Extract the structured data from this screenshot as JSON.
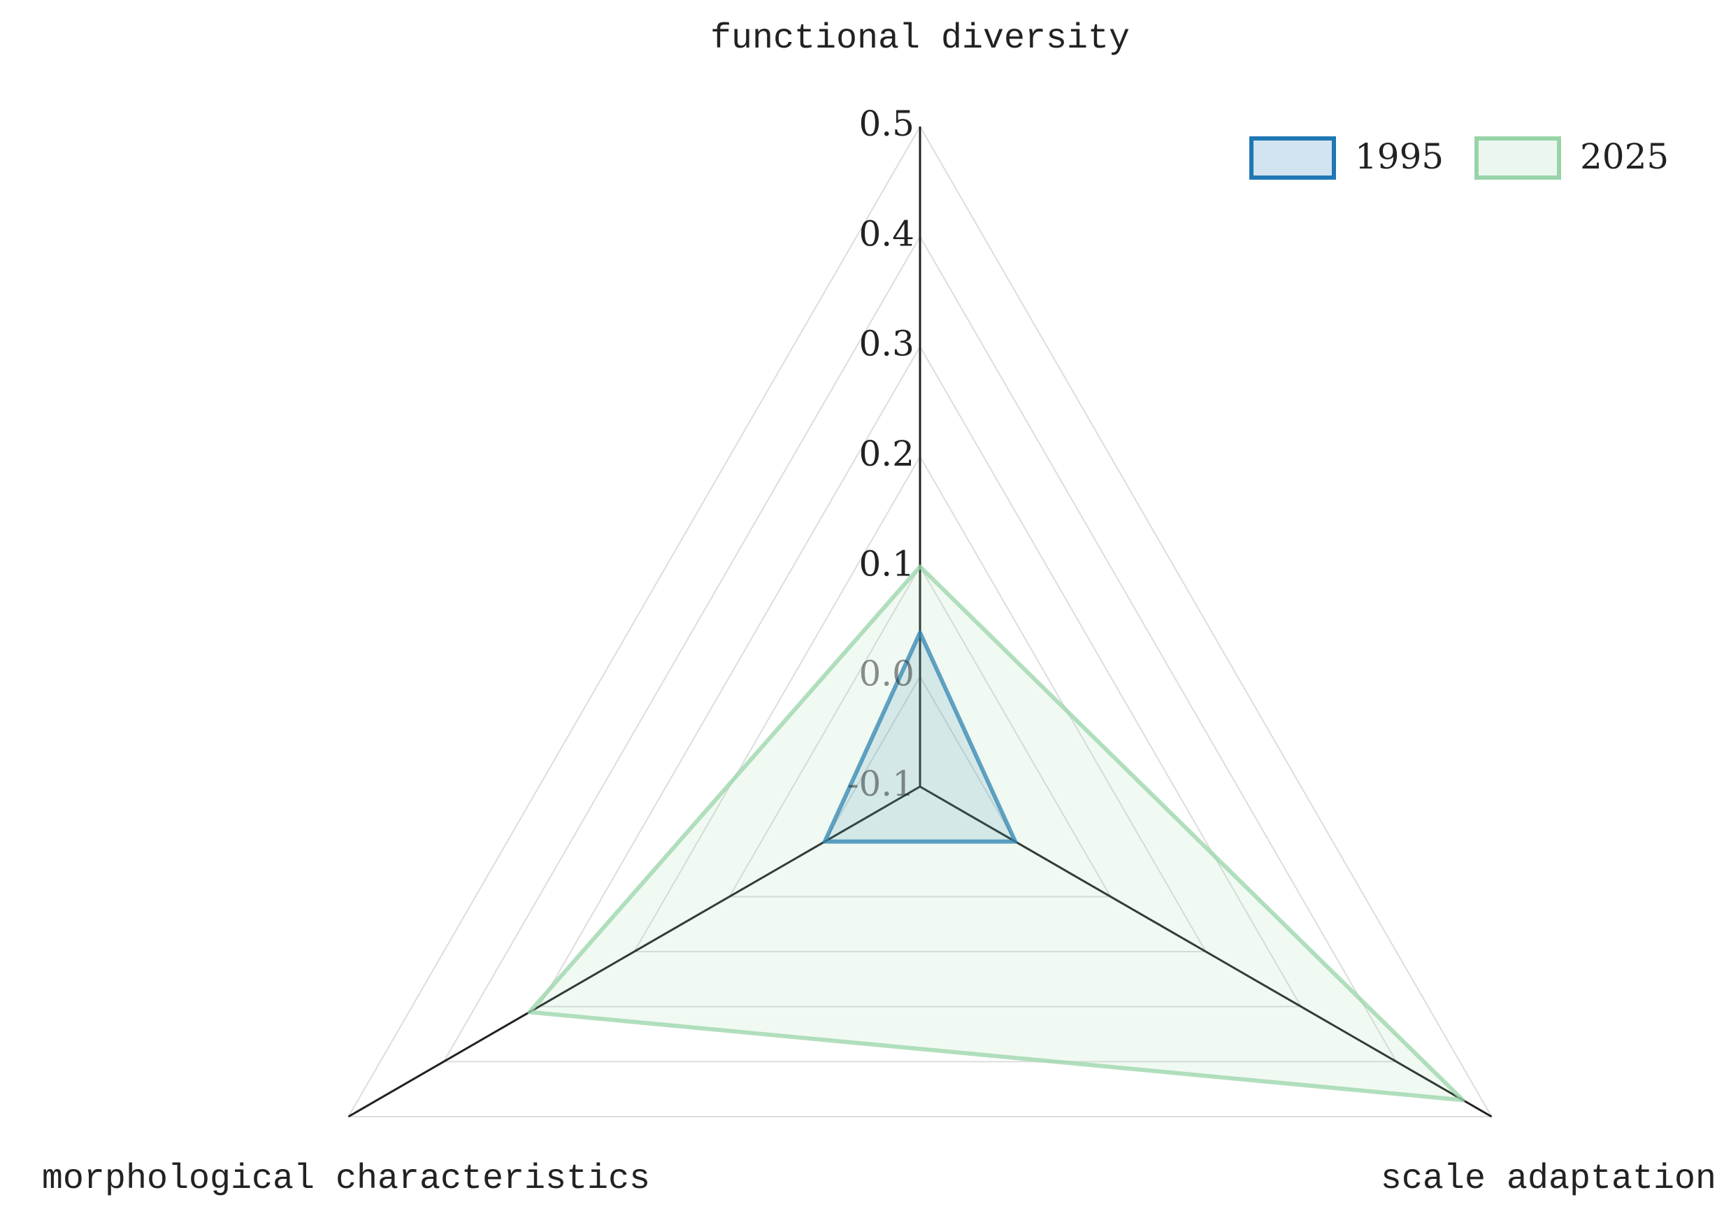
{
  "chart_data": {
    "type": "radar",
    "categories": [
      "functional diversity",
      "scale adaptation",
      "morphological characteristics"
    ],
    "series": [
      {
        "name": "1995",
        "color": "#1f77b4",
        "values": [
          0.04,
          0.0,
          0.0
        ]
      },
      {
        "name": "2025",
        "color": "#98d4a8",
        "values": [
          0.1,
          0.47,
          0.31
        ]
      }
    ],
    "rlim": [
      -0.1,
      0.5
    ],
    "rticks": [
      {
        "value": -0.1,
        "label": "-0.1"
      },
      {
        "value": 0,
        "label": "0.0"
      },
      0.1,
      0.2,
      0.3,
      0.4,
      0.5
    ],
    "grid": true,
    "legend": "top-right"
  }
}
